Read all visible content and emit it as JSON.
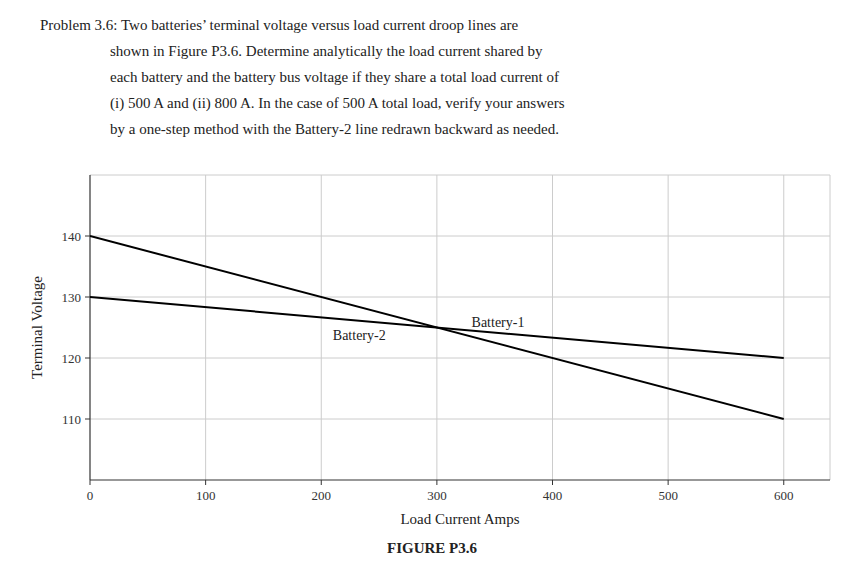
{
  "chart_data": {
    "type": "line",
    "title": "FIGURE P3.6",
    "annotations": [
      "Problem 3.6: Two batteries’ terminal voltage versus load current droop lines are",
      "shown in Figure P3.6. Determine analytically the load current shared by",
      "each battery and the battery bus voltage if they share a total load current of",
      "(i) 500 A and (ii) 800 A. In the case of 500 A total load, verify your answers",
      "by a one-step method with the Battery-2 line redrawn backward as needed."
    ],
    "x_label": "Load Current Amps",
    "y_label": "Terminal Voltage",
    "x": [
      0,
      600
    ],
    "series": [
      {
        "name": "Battery-1",
        "color": "#000000",
        "values": [
          140,
          110
        ]
      },
      {
        "name": "Battery-2",
        "color": "#000000",
        "values": [
          130,
          120
        ]
      }
    ],
    "xlim": [
      0,
      640
    ],
    "ylim": [
      100,
      150
    ],
    "xticks": [
      0,
      100,
      200,
      300,
      400,
      500,
      600
    ],
    "yticks": [
      110,
      120,
      130,
      140
    ],
    "grid": true
  }
}
